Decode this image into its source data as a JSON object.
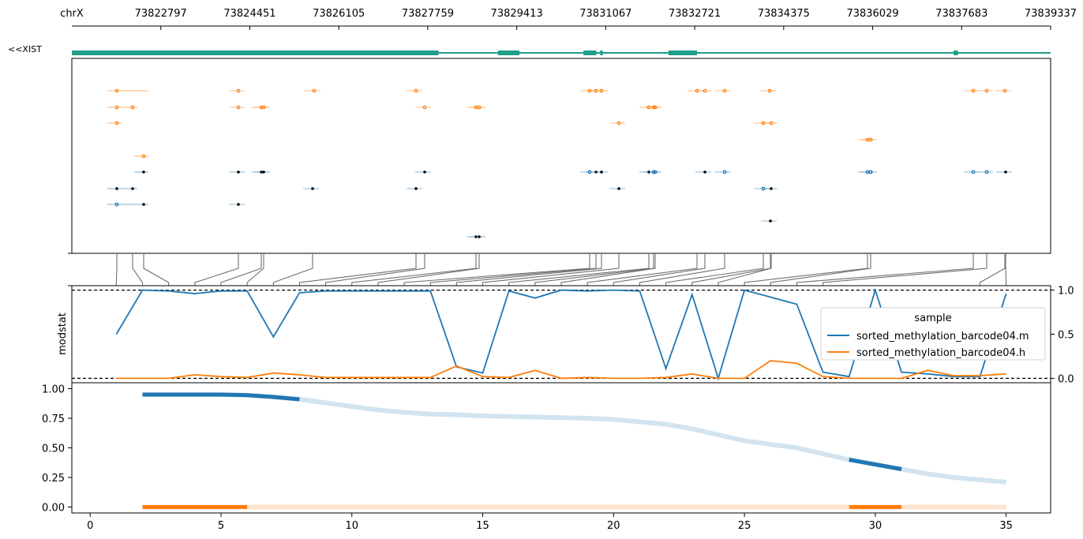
{
  "chart_data": [
    {
      "panel": "gene-track",
      "type": "line",
      "chrom_label": "chrX",
      "ticks": [
        "73822797",
        "73824451",
        "73826105",
        "73827759",
        "73829413",
        "73831067",
        "73832721",
        "73834375",
        "73836029",
        "73837683",
        "73839337"
      ],
      "xlim": [
        73821143,
        73839337
      ],
      "gene_label": "<<XIST",
      "color": "#1f9e89",
      "exons": [
        [
          73821143,
          73827959
        ],
        [
          73829063,
          73829463
        ],
        [
          73830653,
          73830893
        ],
        [
          73830963,
          73831013
        ],
        [
          73832233,
          73832763
        ],
        [
          73837533,
          73837613
        ]
      ]
    },
    {
      "panel": "read-plot",
      "type": "scatter",
      "note_colors": {
        "methylated": "#000000",
        "hydroxymethylated": "#ff7f0e",
        "unmethylated": "#1f77b4"
      },
      "reads": [
        {
          "orange": [
            2.0
          ],
          "black": [],
          "hollow": []
        },
        {
          "orange": [
            1.0,
            1.6
          ],
          "black": [],
          "hollow": []
        },
        {
          "orange": [
            1.0
          ],
          "black": [],
          "hollow": []
        },
        {
          "orange": [
            2.0
          ],
          "black": [],
          "hollow": []
        },
        {
          "orange": [],
          "black": [
            2.0
          ],
          "hollow": []
        },
        {
          "orange": [],
          "black": [
            1.0,
            1.6
          ],
          "hollow": []
        },
        {
          "orange": [],
          "black": [
            2.0
          ],
          "hollow": [
            1.0
          ]
        }
      ]
    },
    {
      "panel": "modstat",
      "type": "line",
      "ylabel": "modstat",
      "yticks": [
        "0.0",
        "0.5",
        "1.0"
      ],
      "ylim": [
        -0.05,
        1.05
      ],
      "legend_title": "sample",
      "legend_position": "right",
      "x": [
        1,
        2,
        3,
        4,
        5,
        6,
        7,
        8,
        9,
        10,
        11,
        12,
        13,
        14,
        15,
        16,
        17,
        18,
        19,
        20,
        21,
        22,
        23,
        24,
        25,
        26,
        27,
        28,
        29,
        30,
        31,
        32,
        33,
        34,
        35
      ],
      "series": [
        {
          "name": "sorted_methylation_barcode04.m",
          "color": "#1f77b4",
          "values": [
            0.5,
            1.0,
            0.99,
            0.96,
            0.99,
            0.99,
            0.47,
            0.97,
            0.99,
            0.99,
            0.99,
            0.99,
            0.99,
            0.13,
            0.06,
            0.99,
            0.91,
            1.0,
            0.99,
            1.0,
            0.99,
            0.11,
            0.95,
            0.0,
            1.0,
            0.92,
            0.84,
            0.07,
            0.02,
            1.0,
            0.07,
            0.05,
            0.02,
            0.02,
            0.96
          ]
        },
        {
          "name": "sorted_methylation_barcode04.h",
          "color": "#ff7f0e",
          "values": [
            0.0,
            0.0,
            0.0,
            0.04,
            0.02,
            0.01,
            0.06,
            0.04,
            0.01,
            0.01,
            0.01,
            0.01,
            0.01,
            0.14,
            0.02,
            0.01,
            0.09,
            0.0,
            0.01,
            0.0,
            0.0,
            0.01,
            0.05,
            0.0,
            0.0,
            0.2,
            0.17,
            0.02,
            0.0,
            0.0,
            0.0,
            0.09,
            0.03,
            0.03,
            0.05
          ]
        }
      ]
    },
    {
      "panel": "smooth",
      "type": "line",
      "xticks": [
        "0",
        "5",
        "10",
        "15",
        "20",
        "25",
        "30",
        "35"
      ],
      "yticks": [
        "0.00",
        "0.25",
        "0.50",
        "0.75",
        "1.00"
      ],
      "ylim": [
        -0.05,
        1.05
      ],
      "xlim": [
        -0.7,
        36.7
      ],
      "x": [
        2,
        3,
        4,
        5,
        6,
        7,
        8,
        9,
        10,
        11,
        12,
        13,
        14,
        15,
        16,
        17,
        18,
        19,
        20,
        21,
        22,
        23,
        24,
        25,
        26,
        27,
        28,
        29,
        30,
        31,
        32,
        33,
        34,
        35
      ],
      "series": [
        {
          "name": "m",
          "color": "#1f77b4",
          "values": [
            0.95,
            0.95,
            0.95,
            0.95,
            0.945,
            0.93,
            0.91,
            0.88,
            0.85,
            0.82,
            0.8,
            0.785,
            0.78,
            0.77,
            0.765,
            0.76,
            0.755,
            0.75,
            0.74,
            0.72,
            0.7,
            0.66,
            0.61,
            0.56,
            0.53,
            0.5,
            0.45,
            0.4,
            0.36,
            0.32,
            0.28,
            0.25,
            0.23,
            0.21
          ],
          "bold_ranges": [
            [
              2,
              8
            ],
            [
              29,
              31
            ]
          ]
        },
        {
          "name": "h",
          "color": "#ff7f0e",
          "values": [
            0.0,
            0.0,
            0.0,
            0.0,
            0.0,
            0.0,
            0.0,
            0.0,
            0.0,
            0.0,
            0.0,
            0.0,
            0.0,
            0.0,
            0.0,
            0.0,
            0.0,
            0.0,
            0.0,
            0.0,
            0.0,
            0.0,
            0.0,
            0.0,
            0.0,
            0.0,
            0.0,
            0.0,
            0.0,
            0.0,
            0.0,
            0.0,
            0.0,
            0.0
          ],
          "bold_ranges": [
            [
              2,
              6
            ],
            [
              29,
              31
            ]
          ]
        }
      ]
    }
  ]
}
